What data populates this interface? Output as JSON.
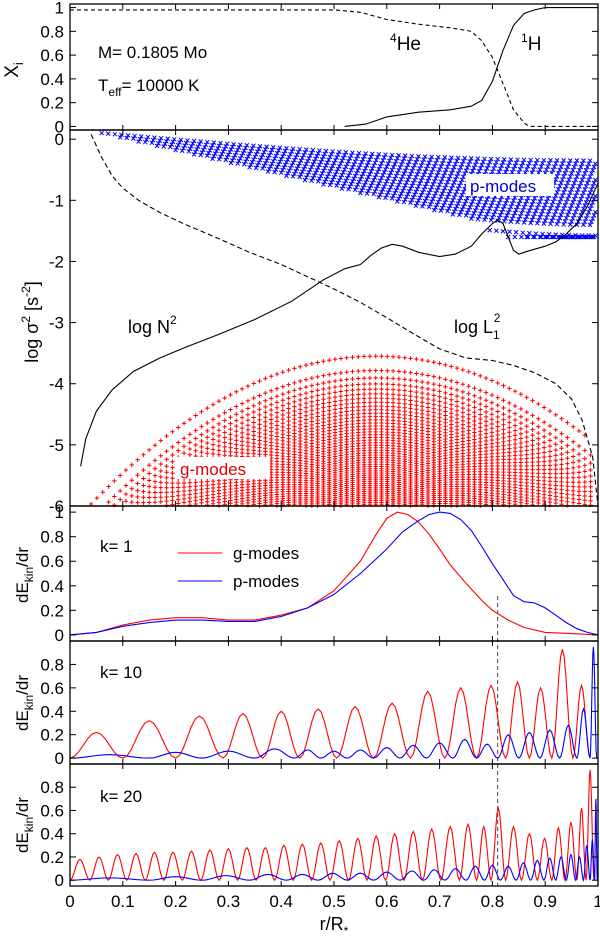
{
  "figure": {
    "xlabel": "r/R",
    "xlabel_sub": "*"
  },
  "chart_data": [
    {
      "panel": "composition",
      "type": "line",
      "ylabel": "X",
      "ylabel_sub": "i",
      "xlim": [
        0,
        1
      ],
      "ylim": [
        -0.03,
        1.03
      ],
      "yticks": [
        0,
        0.2,
        0.4,
        0.6,
        0.8,
        1
      ],
      "annotations": {
        "mass": "M= 0.1805 Mo",
        "teff_prefix": "T",
        "teff_sub": "eff",
        "teff_suffix": "= 10000 K",
        "he_sup": "4",
        "he": "He",
        "h_sup": "1",
        "h": "H"
      },
      "series": [
        {
          "style": "solid",
          "x": [
            0.52,
            0.56,
            0.6,
            0.66,
            0.72,
            0.76,
            0.78,
            0.8,
            0.82,
            0.84,
            0.86,
            0.88,
            0.9,
            0.95,
            1.0
          ],
          "y": [
            0,
            0.02,
            0.08,
            0.12,
            0.14,
            0.17,
            0.22,
            0.38,
            0.64,
            0.85,
            0.95,
            0.98,
            1.0,
            1.0,
            1.0
          ]
        },
        {
          "style": "dashed",
          "x": [
            0.0,
            0.5,
            0.55,
            0.6,
            0.66,
            0.72,
            0.76,
            0.78,
            0.8,
            0.82,
            0.84,
            0.86,
            0.87,
            0.9,
            1.0
          ],
          "y": [
            0.98,
            0.98,
            0.96,
            0.9,
            0.86,
            0.83,
            0.8,
            0.72,
            0.58,
            0.36,
            0.14,
            0.03,
            0,
            0,
            0
          ]
        }
      ]
    },
    {
      "panel": "propagation",
      "type": "scatter",
      "ylabel_prefix": "log ",
      "ylabel_sigma": "σ",
      "ylabel_sup": "2",
      "ylabel_unit_open": " [s",
      "ylabel_unit_sup": "-2",
      "ylabel_unit_close": "]",
      "xlim": [
        0,
        1
      ],
      "ylim": [
        -6,
        0.15
      ],
      "yticks": [
        -6,
        -5,
        -4,
        -3,
        -2,
        -1,
        0
      ],
      "labels": {
        "n2_prefix": "log N",
        "n2_sup": "2",
        "l1_prefix": "log L",
        "l1_sub": "1",
        "l1_sup": "2",
        "pmodes": "p-modes",
        "gmodes": "g-modes"
      },
      "n2_curve": {
        "x": [
          0.02,
          0.03,
          0.05,
          0.08,
          0.12,
          0.17,
          0.22,
          0.28,
          0.35,
          0.42,
          0.48,
          0.52,
          0.55,
          0.57,
          0.59,
          0.61,
          0.63,
          0.66,
          0.7,
          0.73,
          0.76,
          0.78,
          0.8,
          0.81,
          0.82,
          0.83,
          0.84,
          0.85,
          0.86,
          0.88,
          0.9,
          0.92,
          0.94,
          0.96,
          0.98,
          1.0
        ],
        "y": [
          -5.35,
          -4.9,
          -4.45,
          -4.1,
          -3.8,
          -3.58,
          -3.4,
          -3.2,
          -2.95,
          -2.65,
          -2.3,
          -2.12,
          -2.05,
          -1.9,
          -1.78,
          -1.72,
          -1.75,
          -1.85,
          -1.92,
          -1.88,
          -1.75,
          -1.55,
          -1.38,
          -1.32,
          -1.38,
          -1.6,
          -1.82,
          -1.88,
          -1.85,
          -1.8,
          -1.75,
          -1.68,
          -1.55,
          -1.38,
          -1.1,
          -0.72
        ]
      },
      "l1_curve": {
        "x": [
          0.04,
          0.06,
          0.08,
          0.1,
          0.13,
          0.17,
          0.22,
          0.28,
          0.34,
          0.4,
          0.45,
          0.5,
          0.55,
          0.6,
          0.65,
          0.7,
          0.75,
          0.8,
          0.84,
          0.88,
          0.92,
          0.95,
          0.97,
          0.99,
          1.0
        ],
        "y": [
          0.08,
          -0.3,
          -0.6,
          -0.8,
          -1.0,
          -1.2,
          -1.4,
          -1.62,
          -1.85,
          -2.05,
          -2.25,
          -2.45,
          -2.67,
          -2.92,
          -3.18,
          -3.43,
          -3.58,
          -3.62,
          -3.7,
          -3.82,
          -4.0,
          -4.25,
          -4.6,
          -5.2,
          -6.0
        ]
      },
      "p_modes": {
        "levels": 26,
        "log_min": -1.6,
        "log_max": 0.1,
        "step_x": 0.0125
      },
      "g_modes": {
        "levels": 50,
        "log_max": -3.55,
        "log_min": -6.0,
        "step_x": 0.011
      }
    },
    {
      "panel": "k1",
      "type": "line",
      "ylabel": "dE",
      "ylabel_sub": "kin",
      "ylabel_suffix": "/dr",
      "k_label": "k= 1",
      "xlim": [
        0,
        1
      ],
      "ylim": [
        -0.05,
        1.05
      ],
      "yticks": [
        0,
        0.2,
        0.4,
        0.6,
        0.8,
        1
      ],
      "series": [
        {
          "name": "g-modes",
          "color": "#ff0000",
          "x": [
            0,
            0.05,
            0.1,
            0.15,
            0.2,
            0.25,
            0.3,
            0.35,
            0.4,
            0.45,
            0.5,
            0.55,
            0.58,
            0.6,
            0.62,
            0.64,
            0.66,
            0.68,
            0.7,
            0.72,
            0.75,
            0.78,
            0.8,
            0.83,
            0.86,
            0.9,
            0.95,
            1.0
          ],
          "y": [
            0,
            0.02,
            0.08,
            0.12,
            0.14,
            0.14,
            0.12,
            0.12,
            0.16,
            0.22,
            0.36,
            0.6,
            0.82,
            0.95,
            1.0,
            0.98,
            0.92,
            0.82,
            0.7,
            0.57,
            0.42,
            0.28,
            0.2,
            0.12,
            0.06,
            0.02,
            0.01,
            0
          ]
        },
        {
          "name": "p-modes",
          "color": "#0000ff",
          "x": [
            0,
            0.05,
            0.1,
            0.15,
            0.2,
            0.25,
            0.3,
            0.35,
            0.4,
            0.45,
            0.5,
            0.55,
            0.6,
            0.63,
            0.66,
            0.68,
            0.7,
            0.72,
            0.74,
            0.76,
            0.78,
            0.8,
            0.82,
            0.84,
            0.86,
            0.88,
            0.9,
            0.92,
            0.94,
            0.96,
            0.98,
            1.0
          ],
          "y": [
            0,
            0.02,
            0.07,
            0.1,
            0.12,
            0.12,
            0.11,
            0.11,
            0.15,
            0.22,
            0.33,
            0.5,
            0.7,
            0.84,
            0.93,
            0.98,
            1.0,
            0.99,
            0.94,
            0.85,
            0.72,
            0.58,
            0.45,
            0.32,
            0.27,
            0.26,
            0.22,
            0.16,
            0.1,
            0.05,
            0.02,
            0
          ]
        }
      ],
      "vline_x": 0.81
    },
    {
      "panel": "k10",
      "type": "line",
      "ylabel": "dE",
      "ylabel_sub": "kin",
      "ylabel_suffix": "/dr",
      "k_label": "k= 10",
      "xlim": [
        0,
        1
      ],
      "ylim": [
        -0.05,
        1.0
      ],
      "yticks": [
        0,
        0.2,
        0.4,
        0.6,
        0.8
      ],
      "g_peaks": {
        "x": [
          0.05,
          0.15,
          0.25,
          0.33,
          0.4,
          0.47,
          0.54,
          0.61,
          0.68,
          0.74,
          0.8,
          0.85,
          0.89,
          0.935,
          0.97
        ],
        "y": [
          0.22,
          0.32,
          0.36,
          0.38,
          0.4,
          0.42,
          0.44,
          0.47,
          0.57,
          0.6,
          0.62,
          0.65,
          0.6,
          0.93,
          0.62
        ]
      },
      "p_peaks": {
        "x": [
          0.1,
          0.2,
          0.3,
          0.4,
          0.45,
          0.5,
          0.55,
          0.6,
          0.65,
          0.7,
          0.75,
          0.79,
          0.83,
          0.87,
          0.91,
          0.945,
          0.975,
          0.995
        ],
        "y": [
          0.03,
          0.05,
          0.06,
          0.08,
          0.07,
          0.06,
          0.07,
          0.09,
          0.11,
          0.13,
          0.16,
          0.12,
          0.2,
          0.22,
          0.24,
          0.28,
          0.42,
          0.95
        ]
      },
      "vline_x": 0.81
    },
    {
      "panel": "k20",
      "type": "line",
      "ylabel": "dE",
      "ylabel_sub": "kin",
      "ylabel_suffix": "/dr",
      "k_label": "k= 20",
      "xlim": [
        0,
        1
      ],
      "ylim": [
        -0.05,
        1.0
      ],
      "yticks": [
        0,
        0.2,
        0.4,
        0.6,
        0.8
      ],
      "g_peaks": {
        "x": [
          0.02,
          0.055,
          0.09,
          0.125,
          0.16,
          0.195,
          0.23,
          0.265,
          0.3,
          0.335,
          0.37,
          0.405,
          0.44,
          0.475,
          0.51,
          0.545,
          0.58,
          0.615,
          0.65,
          0.685,
          0.72,
          0.755,
          0.785,
          0.81,
          0.84,
          0.87,
          0.9,
          0.925,
          0.95,
          0.97,
          0.985
        ],
        "y": [
          0.18,
          0.2,
          0.22,
          0.23,
          0.24,
          0.24,
          0.25,
          0.26,
          0.27,
          0.28,
          0.28,
          0.3,
          0.31,
          0.32,
          0.34,
          0.36,
          0.38,
          0.4,
          0.42,
          0.44,
          0.46,
          0.48,
          0.46,
          0.62,
          0.46,
          0.4,
          0.36,
          0.45,
          0.5,
          0.62,
          0.95
        ]
      },
      "p_peaks": {
        "x": [
          0.1,
          0.2,
          0.3,
          0.38,
          0.44,
          0.5,
          0.55,
          0.6,
          0.65,
          0.69,
          0.73,
          0.77,
          0.8,
          0.83,
          0.86,
          0.885,
          0.91,
          0.93,
          0.95,
          0.965,
          0.98,
          0.99,
          0.997
        ],
        "y": [
          0.02,
          0.03,
          0.04,
          0.05,
          0.05,
          0.06,
          0.06,
          0.07,
          0.08,
          0.09,
          0.1,
          0.12,
          0.13,
          0.12,
          0.15,
          0.17,
          0.19,
          0.2,
          0.22,
          0.2,
          0.3,
          0.35,
          0.7
        ]
      },
      "vline_x": 0.81
    }
  ]
}
